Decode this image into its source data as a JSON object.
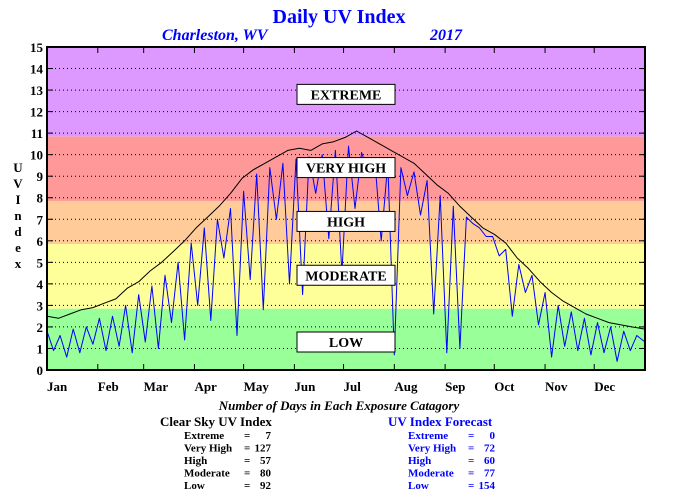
{
  "chart_data": {
    "type": "line",
    "title": "Daily UV Index",
    "subtitle_location": "Charleston, WV",
    "subtitle_year": "2017",
    "ylabel": "UV Index",
    "ylim": [
      0,
      15
    ],
    "yticks": [
      "0",
      "1",
      "2",
      "3",
      "4",
      "5",
      "6",
      "7",
      "8",
      "9",
      "10",
      "11",
      "12",
      "13",
      "14",
      "15"
    ],
    "xlim": [
      1,
      366
    ],
    "months": [
      {
        "label": "Jan",
        "day": 1
      },
      {
        "label": "Feb",
        "day": 32
      },
      {
        "label": "Mar",
        "day": 60
      },
      {
        "label": "Apr",
        "day": 91
      },
      {
        "label": "May",
        "day": 121
      },
      {
        "label": "Jun",
        "day": 152
      },
      {
        "label": "Jul",
        "day": 182
      },
      {
        "label": "Aug",
        "day": 213
      },
      {
        "label": "Sep",
        "day": 244
      },
      {
        "label": "Oct",
        "day": 274
      },
      {
        "label": "Nov",
        "day": 305
      },
      {
        "label": "Dec",
        "day": 335
      }
    ],
    "grid": true,
    "zones": [
      {
        "label": "LOW",
        "from": 0,
        "to": 2.85,
        "color": "#99ff99",
        "label_y": 1.3
      },
      {
        "label": "MODERATE",
        "from": 2.85,
        "to": 5.85,
        "color": "#ffff99",
        "label_y": 4.4
      },
      {
        "label": "HIGH",
        "from": 5.85,
        "to": 7.85,
        "color": "#ffcc99",
        "label_y": 6.9
      },
      {
        "label": "VERY HIGH",
        "from": 7.85,
        "to": 10.85,
        "color": "#ff9999",
        "label_y": 9.4
      },
      {
        "label": "EXTREME",
        "from": 10.85,
        "to": 15,
        "color": "#dd99ff",
        "label_y": 12.8
      }
    ],
    "series": [
      {
        "key": "clear_sky",
        "color": "#000000",
        "points": [
          [
            1,
            2.5
          ],
          [
            8,
            2.4
          ],
          [
            15,
            2.6
          ],
          [
            22,
            2.8
          ],
          [
            29,
            2.9
          ],
          [
            36,
            3.1
          ],
          [
            43,
            3.3
          ],
          [
            50,
            3.8
          ],
          [
            57,
            4.1
          ],
          [
            64,
            4.6
          ],
          [
            71,
            5.0
          ],
          [
            78,
            5.5
          ],
          [
            85,
            6.0
          ],
          [
            92,
            6.6
          ],
          [
            99,
            7.1
          ],
          [
            106,
            7.6
          ],
          [
            113,
            8.2
          ],
          [
            120,
            8.9
          ],
          [
            127,
            9.3
          ],
          [
            134,
            9.6
          ],
          [
            141,
            9.9
          ],
          [
            148,
            10.2
          ],
          [
            155,
            10.3
          ],
          [
            162,
            10.2
          ],
          [
            169,
            10.5
          ],
          [
            176,
            10.6
          ],
          [
            183,
            10.8
          ],
          [
            190,
            11.1
          ],
          [
            197,
            10.8
          ],
          [
            204,
            10.5
          ],
          [
            211,
            10.2
          ],
          [
            218,
            9.9
          ],
          [
            225,
            9.6
          ],
          [
            232,
            9.1
          ],
          [
            239,
            8.6
          ],
          [
            246,
            8.2
          ],
          [
            253,
            7.6
          ],
          [
            260,
            7.1
          ],
          [
            267,
            6.6
          ],
          [
            274,
            6.3
          ],
          [
            281,
            5.9
          ],
          [
            288,
            5.2
          ],
          [
            295,
            4.7
          ],
          [
            302,
            4.1
          ],
          [
            309,
            3.6
          ],
          [
            316,
            3.2
          ],
          [
            323,
            2.9
          ],
          [
            330,
            2.6
          ],
          [
            337,
            2.4
          ],
          [
            344,
            2.2
          ],
          [
            351,
            2.1
          ],
          [
            358,
            2.0
          ],
          [
            366,
            1.9
          ]
        ]
      },
      {
        "key": "forecast",
        "color": "#0000ff",
        "points": [
          [
            1,
            1.8
          ],
          [
            5,
            0.9
          ],
          [
            9,
            1.6
          ],
          [
            13,
            0.6
          ],
          [
            17,
            1.9
          ],
          [
            21,
            0.8
          ],
          [
            25,
            2.0
          ],
          [
            29,
            1.2
          ],
          [
            33,
            2.4
          ],
          [
            37,
            0.9
          ],
          [
            41,
            2.5
          ],
          [
            45,
            1.1
          ],
          [
            49,
            3.0
          ],
          [
            53,
            0.8
          ],
          [
            57,
            3.5
          ],
          [
            61,
            1.3
          ],
          [
            65,
            3.9
          ],
          [
            69,
            1.0
          ],
          [
            73,
            4.4
          ],
          [
            77,
            2.2
          ],
          [
            81,
            5.0
          ],
          [
            85,
            1.4
          ],
          [
            89,
            5.9
          ],
          [
            93,
            3.0
          ],
          [
            97,
            6.6
          ],
          [
            101,
            2.3
          ],
          [
            105,
            7.0
          ],
          [
            109,
            5.2
          ],
          [
            113,
            7.5
          ],
          [
            117,
            1.6
          ],
          [
            121,
            8.3
          ],
          [
            125,
            4.2
          ],
          [
            129,
            9.1
          ],
          [
            133,
            2.8
          ],
          [
            137,
            9.4
          ],
          [
            141,
            7.0
          ],
          [
            145,
            9.6
          ],
          [
            149,
            4.0
          ],
          [
            153,
            9.8
          ],
          [
            157,
            3.5
          ],
          [
            161,
            9.9
          ],
          [
            165,
            8.2
          ],
          [
            169,
            10.0
          ],
          [
            173,
            6.1
          ],
          [
            177,
            10.2
          ],
          [
            181,
            4.5
          ],
          [
            185,
            10.4
          ],
          [
            189,
            7.5
          ],
          [
            193,
            10.1
          ],
          [
            197,
            9.2
          ],
          [
            201,
            9.8
          ],
          [
            205,
            6.0
          ],
          [
            209,
            9.6
          ],
          [
            213,
            0.7
          ],
          [
            217,
            9.4
          ],
          [
            221,
            8.1
          ],
          [
            225,
            9.2
          ],
          [
            229,
            7.2
          ],
          [
            233,
            8.8
          ],
          [
            237,
            2.6
          ],
          [
            241,
            8.1
          ],
          [
            245,
            0.8
          ],
          [
            249,
            7.6
          ],
          [
            253,
            1.0
          ],
          [
            257,
            7.1
          ],
          [
            261,
            6.8
          ],
          [
            265,
            6.6
          ],
          [
            269,
            6.2
          ],
          [
            273,
            6.2
          ],
          [
            277,
            5.3
          ],
          [
            281,
            5.6
          ],
          [
            285,
            2.5
          ],
          [
            289,
            4.9
          ],
          [
            293,
            3.6
          ],
          [
            297,
            4.4
          ],
          [
            301,
            2.1
          ],
          [
            305,
            3.6
          ],
          [
            309,
            0.6
          ],
          [
            313,
            3.0
          ],
          [
            317,
            1.1
          ],
          [
            321,
            2.7
          ],
          [
            325,
            0.9
          ],
          [
            329,
            2.4
          ],
          [
            333,
            0.7
          ],
          [
            337,
            2.2
          ],
          [
            341,
            0.8
          ],
          [
            345,
            2.0
          ],
          [
            349,
            0.4
          ],
          [
            353,
            1.8
          ],
          [
            357,
            0.9
          ],
          [
            361,
            1.6
          ],
          [
            366,
            1.3
          ]
        ]
      }
    ]
  },
  "stats": {
    "caption": "Number of Days in Each Exposure Catagory",
    "clear_sky": {
      "title": "Clear Sky UV Index",
      "rows": [
        {
          "label": "Extreme",
          "eq": "=",
          "value": "7"
        },
        {
          "label": "Very High",
          "eq": "=",
          "value": "127"
        },
        {
          "label": "High",
          "eq": "=",
          "value": "57"
        },
        {
          "label": "Moderate",
          "eq": "=",
          "value": "80"
        },
        {
          "label": "Low",
          "eq": "=",
          "value": "92"
        }
      ]
    },
    "forecast": {
      "title": "UV Index Forecast",
      "rows": [
        {
          "label": "Extreme",
          "eq": "=",
          "value": "0"
        },
        {
          "label": "Very High",
          "eq": "=",
          "value": "72"
        },
        {
          "label": "High",
          "eq": "=",
          "value": "60"
        },
        {
          "label": "Moderate",
          "eq": "=",
          "value": "77"
        },
        {
          "label": "Low",
          "eq": "=",
          "value": "154"
        }
      ]
    }
  }
}
